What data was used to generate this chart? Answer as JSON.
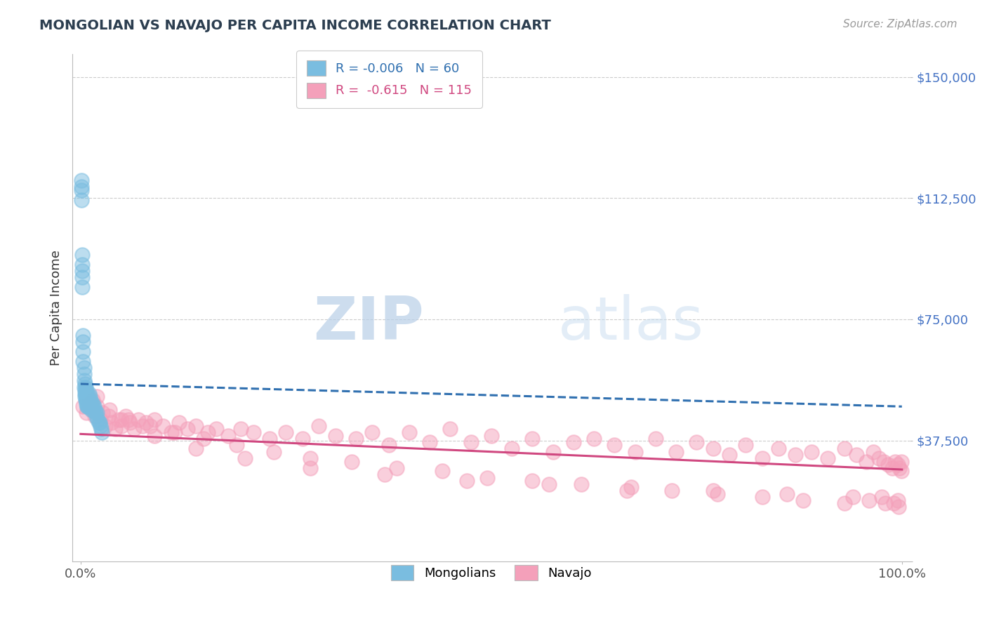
{
  "title": "MONGOLIAN VS NAVAJO PER CAPITA INCOME CORRELATION CHART",
  "source_text": "Source: ZipAtlas.com",
  "ylabel": "Per Capita Income",
  "xlim": [
    -0.01,
    1.01
  ],
  "ylim": [
    0,
    157000
  ],
  "yticks": [
    0,
    37500,
    75000,
    112500,
    150000
  ],
  "ytick_labels": [
    "",
    "$37,500",
    "$75,000",
    "$112,500",
    "$150,000"
  ],
  "xtick_positions": [
    0.0,
    1.0
  ],
  "xtick_labels": [
    "0.0%",
    "100.0%"
  ],
  "legend_mongolians_R": "-0.006",
  "legend_mongolians_N": "60",
  "legend_navajo_R": "-0.615",
  "legend_navajo_N": "115",
  "mongolian_color": "#7abde0",
  "navajo_color": "#f4a0ba",
  "mongolian_line_color": "#3070b0",
  "navajo_line_color": "#d04880",
  "watermark_color": "#d0dff0",
  "background_color": "#ffffff",
  "title_color": "#2c3e50",
  "source_color": "#999999",
  "ytick_color": "#4472C4",
  "mongolian_x": [
    0.001,
    0.001,
    0.002,
    0.002,
    0.002,
    0.003,
    0.003,
    0.003,
    0.004,
    0.004,
    0.004,
    0.005,
    0.005,
    0.005,
    0.006,
    0.006,
    0.006,
    0.007,
    0.007,
    0.007,
    0.007,
    0.008,
    0.008,
    0.008,
    0.009,
    0.009,
    0.009,
    0.01,
    0.01,
    0.01,
    0.011,
    0.011,
    0.012,
    0.012,
    0.013,
    0.013,
    0.014,
    0.015,
    0.015,
    0.016,
    0.017,
    0.018,
    0.019,
    0.02,
    0.021,
    0.022,
    0.023,
    0.024,
    0.025,
    0.026,
    0.001,
    0.001,
    0.002,
    0.002,
    0.003,
    0.004,
    0.005,
    0.006,
    0.007,
    0.008
  ],
  "mongolian_y": [
    115000,
    112000,
    92000,
    88000,
    85000,
    68000,
    65000,
    62000,
    58000,
    56000,
    54000,
    53000,
    52000,
    51000,
    54000,
    52000,
    50000,
    53000,
    51000,
    50000,
    49000,
    52000,
    50000,
    48000,
    51000,
    50000,
    48000,
    52000,
    50000,
    48000,
    51000,
    49000,
    50000,
    48000,
    49000,
    47000,
    48000,
    49000,
    47000,
    48000,
    47000,
    46000,
    45000,
    46000,
    44000,
    43000,
    43000,
    42000,
    41000,
    40000,
    118000,
    116000,
    95000,
    90000,
    70000,
    60000,
    55000,
    52000,
    50000,
    48000
  ],
  "navajo_x": [
    0.003,
    0.007,
    0.01,
    0.014,
    0.017,
    0.02,
    0.024,
    0.027,
    0.03,
    0.034,
    0.038,
    0.042,
    0.046,
    0.05,
    0.055,
    0.06,
    0.065,
    0.07,
    0.075,
    0.08,
    0.09,
    0.1,
    0.11,
    0.12,
    0.13,
    0.14,
    0.155,
    0.165,
    0.18,
    0.195,
    0.21,
    0.23,
    0.25,
    0.27,
    0.29,
    0.31,
    0.335,
    0.355,
    0.375,
    0.4,
    0.425,
    0.45,
    0.475,
    0.5,
    0.525,
    0.55,
    0.575,
    0.6,
    0.625,
    0.65,
    0.675,
    0.7,
    0.725,
    0.75,
    0.77,
    0.79,
    0.81,
    0.83,
    0.85,
    0.87,
    0.89,
    0.91,
    0.93,
    0.945,
    0.957,
    0.965,
    0.972,
    0.978,
    0.983,
    0.988,
    0.992,
    0.995,
    0.997,
    0.999,
    0.999,
    0.015,
    0.035,
    0.058,
    0.085,
    0.115,
    0.15,
    0.19,
    0.235,
    0.28,
    0.33,
    0.385,
    0.44,
    0.495,
    0.55,
    0.61,
    0.665,
    0.72,
    0.775,
    0.83,
    0.88,
    0.93,
    0.96,
    0.98,
    0.99,
    0.996,
    0.02,
    0.05,
    0.09,
    0.14,
    0.2,
    0.28,
    0.37,
    0.47,
    0.57,
    0.67,
    0.77,
    0.86,
    0.94,
    0.975,
    0.995
  ],
  "navajo_y": [
    48000,
    46000,
    49000,
    47000,
    45000,
    48000,
    44000,
    46000,
    42000,
    45000,
    43000,
    41000,
    44000,
    42000,
    45000,
    43000,
    41000,
    44000,
    42000,
    43000,
    44000,
    42000,
    40000,
    43000,
    41000,
    42000,
    40000,
    41000,
    39000,
    41000,
    40000,
    38000,
    40000,
    38000,
    42000,
    39000,
    38000,
    40000,
    36000,
    40000,
    37000,
    41000,
    37000,
    39000,
    35000,
    38000,
    34000,
    37000,
    38000,
    36000,
    34000,
    38000,
    34000,
    37000,
    35000,
    33000,
    36000,
    32000,
    35000,
    33000,
    34000,
    32000,
    35000,
    33000,
    31000,
    34000,
    32000,
    31000,
    30000,
    29000,
    31000,
    30000,
    29000,
    28000,
    31000,
    50000,
    47000,
    44000,
    42000,
    40000,
    38000,
    36000,
    34000,
    32000,
    31000,
    29000,
    28000,
    26000,
    25000,
    24000,
    22000,
    22000,
    21000,
    20000,
    19000,
    18000,
    19000,
    18000,
    18000,
    17000,
    51000,
    44000,
    39000,
    35000,
    32000,
    29000,
    27000,
    25000,
    24000,
    23000,
    22000,
    21000,
    20000,
    20000,
    19000
  ]
}
